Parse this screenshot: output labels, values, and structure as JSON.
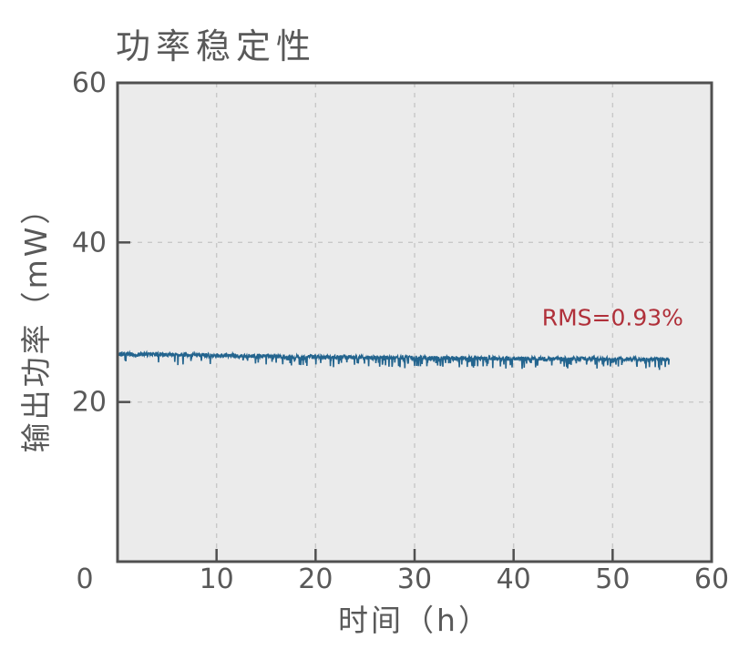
{
  "chart_data": {
    "type": "line",
    "title": "功率稳定性",
    "xlabel": "时间（h）",
    "ylabel": "输出功率（mW）",
    "xlim": [
      0,
      60
    ],
    "ylim": [
      0,
      60
    ],
    "xticks": [
      0,
      10,
      20,
      30,
      40,
      50,
      60
    ],
    "yticks": [
      0,
      20,
      40,
      60
    ],
    "origin_label": "0",
    "grid": true,
    "grid_style": "dashed",
    "colors": {
      "plot_background": "#ebebeb",
      "frame": "#505050",
      "grid": "#c8c8c8",
      "text": "#595959",
      "line": "#23648e",
      "annotation": "#b0303a"
    },
    "annotation": {
      "text": "RMS=0.93%",
      "x": 50,
      "y": 30.5
    },
    "series": [
      {
        "name": "输出功率",
        "t_start_h": 0,
        "t_end_h": 55.7,
        "sampled_x_h": [
          0,
          5,
          10,
          15,
          20,
          25,
          30,
          35,
          40,
          45,
          50,
          55.7
        ],
        "sampled_center_mw": [
          26.0,
          25.95,
          25.85,
          25.75,
          25.65,
          25.6,
          25.55,
          25.5,
          25.45,
          25.4,
          25.4,
          25.35
        ],
        "band_mw": 0.25,
        "spike_depth_mw": 1.2,
        "rms_percent": 0.93
      }
    ]
  }
}
